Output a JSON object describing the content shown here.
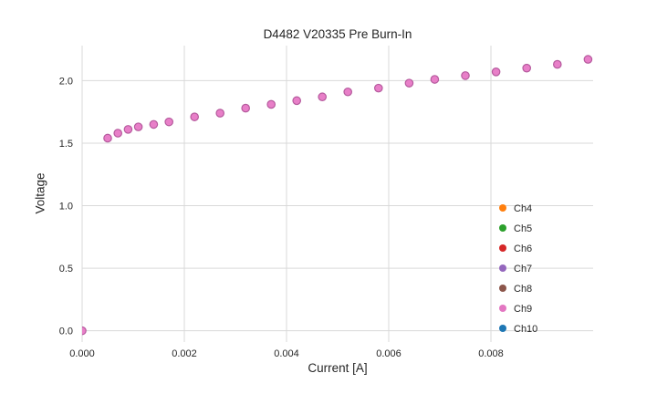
{
  "chart_data": {
    "type": "scatter",
    "title": "D4482 V20335 Pre Burn-In",
    "xlabel": "Current [A]",
    "ylabel": "Voltage",
    "xlim": [
      0,
      0.01
    ],
    "ylim": [
      -0.09,
      2.28
    ],
    "xticks": [
      0,
      0.002,
      0.004,
      0.006,
      0.008
    ],
    "xtick_labels": [
      "0.000",
      "0.002",
      "0.004",
      "0.006",
      "0.008"
    ],
    "yticks": [
      0,
      0.5,
      1,
      1.5,
      2
    ],
    "ytick_labels": [
      "0.0",
      "0.5",
      "1.0",
      "1.5",
      "2.0"
    ],
    "grid": true,
    "background_color": "#ffffff",
    "grid_color": "#d9d9d9",
    "text_color": "#262626",
    "legend": {
      "position": "lower right",
      "entries": [
        {
          "label": "Ch4",
          "color": "#ff7f0e"
        },
        {
          "label": "Ch5",
          "color": "#2ca02c"
        },
        {
          "label": "Ch6",
          "color": "#d62728"
        },
        {
          "label": "Ch7",
          "color": "#9467bd"
        },
        {
          "label": "Ch8",
          "color": "#8c564b"
        },
        {
          "label": "Ch9",
          "color": "#e377c2"
        },
        {
          "label": "Ch10",
          "color": "#1f77b4"
        }
      ]
    },
    "series": [
      {
        "name": "Ch9",
        "color": "#e87fc8",
        "edge_color": "#b55a9d",
        "marker_radius": 4.2,
        "x": [
          0.0,
          0.0005,
          0.0007,
          0.0009,
          0.0011,
          0.0014,
          0.0017,
          0.0022,
          0.0027,
          0.0032,
          0.0037,
          0.0042,
          0.0047,
          0.0052,
          0.0058,
          0.0064,
          0.0069,
          0.0075,
          0.0081,
          0.0087,
          0.0093,
          0.0099
        ],
        "y": [
          0.0,
          1.54,
          1.58,
          1.61,
          1.63,
          1.65,
          1.67,
          1.71,
          1.74,
          1.78,
          1.81,
          1.84,
          1.87,
          1.91,
          1.94,
          1.98,
          2.01,
          2.04,
          2.07,
          2.1,
          2.13,
          2.17
        ]
      }
    ]
  }
}
